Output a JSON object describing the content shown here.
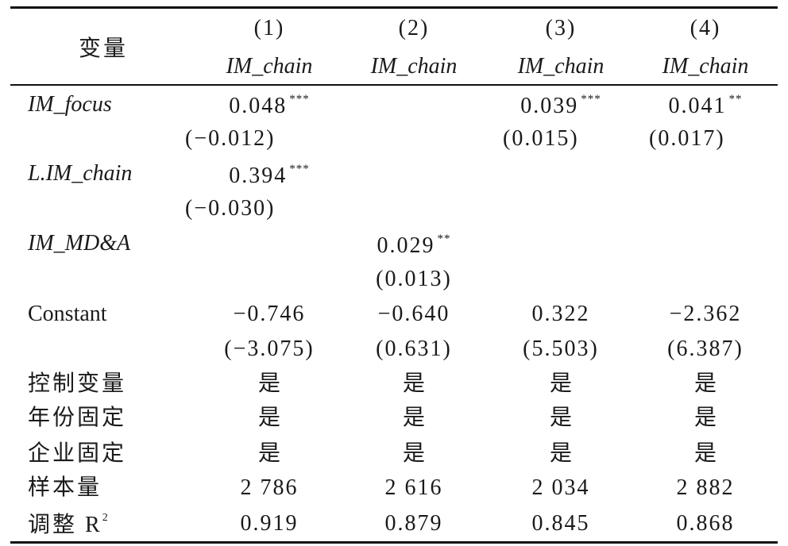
{
  "header": {
    "variable_label": "变量",
    "model_numbers": [
      "(1)",
      "(2)",
      "(3)",
      "(4)"
    ],
    "dependent_vars": [
      "IM_chain",
      "IM_chain",
      "IM_chain",
      "IM_chain"
    ]
  },
  "rows": {
    "im_focus": {
      "label": "IM_focus",
      "coef": [
        "0.048",
        "",
        "0.039",
        "0.041"
      ],
      "stars": [
        "***",
        "",
        "***",
        "**"
      ],
      "se": [
        "(−0.012)",
        "",
        "(0.015)",
        "(0.017)"
      ]
    },
    "l_im_chain": {
      "label": "L.IM_chain",
      "coef": [
        "0.394"
      ],
      "stars": [
        "***"
      ],
      "se": [
        "(−0.030)"
      ]
    },
    "im_mda": {
      "label": "IM_MD&A",
      "coef": "0.029",
      "stars": "**",
      "se": "(0.013)"
    },
    "constant": {
      "label": "Constant",
      "coef": [
        "−0.746",
        "−0.640",
        "0.322",
        "−2.362"
      ],
      "se": [
        "(−3.075)",
        "(0.631)",
        "(5.503)",
        "(6.387)"
      ]
    },
    "controls": {
      "label": "控制变量",
      "values": [
        "是",
        "是",
        "是",
        "是"
      ]
    },
    "year_fe": {
      "label": "年份固定",
      "values": [
        "是",
        "是",
        "是",
        "是"
      ]
    },
    "firm_fe": {
      "label": "企业固定",
      "values": [
        "是",
        "是",
        "是",
        "是"
      ]
    },
    "n_obs": {
      "label": "样本量",
      "values": [
        "2 786",
        "2 616",
        "2 034",
        "2 882"
      ]
    },
    "adj_r2": {
      "label": "调整 R",
      "label_sup": "2",
      "values": [
        "0.919",
        "0.879",
        "0.845",
        "0.868"
      ]
    }
  }
}
